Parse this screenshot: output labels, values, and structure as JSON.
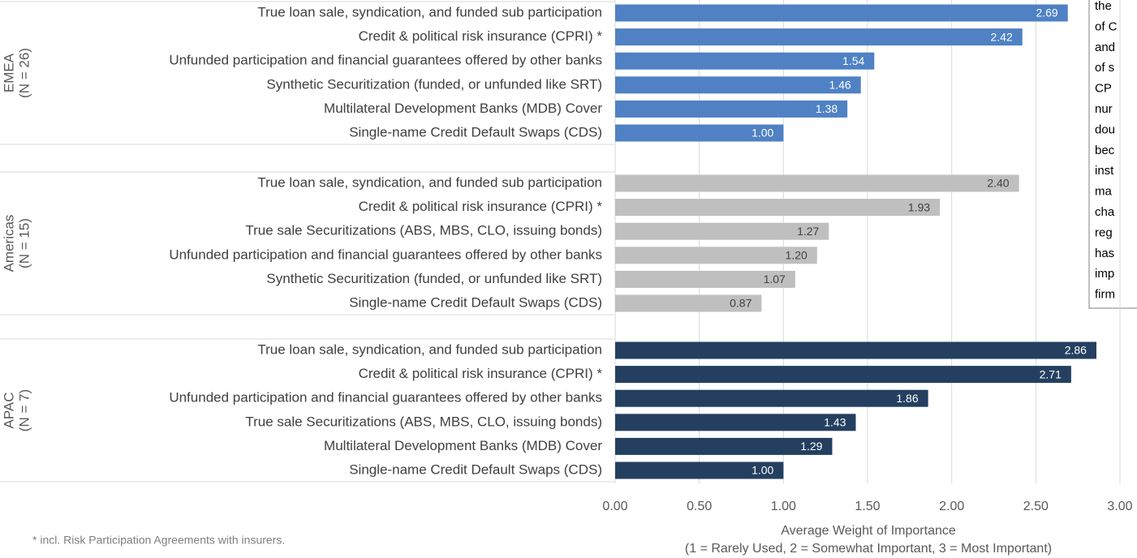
{
  "chart_data": {
    "type": "bar",
    "orientation": "horizontal",
    "groups": [
      {
        "name": "EMEA",
        "subtitle": "(N = 26)",
        "color": "#4f81c4",
        "label_color": "#ffffff",
        "categories": [
          "True loan sale, syndication, and funded sub participation",
          "Credit & political risk insurance (CPRI) *",
          "Unfunded participation and financial guarantees offered by other banks",
          "Synthetic Securitization (funded, or unfunded like SRT)",
          "Multilateral Development Banks (MDB) Cover",
          "Single-name Credit Default Swaps (CDS)"
        ],
        "values": [
          2.69,
          2.42,
          1.54,
          1.46,
          1.38,
          1.0
        ],
        "value_labels": [
          "2.69",
          "2.42",
          "1.54",
          "1.46",
          "1.38",
          "1.00"
        ]
      },
      {
        "name": "Americas",
        "subtitle": "(N = 15)",
        "color": "#bfbfbf",
        "label_color": "#404040",
        "categories": [
          "True loan sale, syndication, and funded sub participation",
          "Credit & political risk insurance (CPRI) *",
          "True sale Securitizations (ABS, MBS, CLO, issuing bonds)",
          "Unfunded participation and financial guarantees offered by other banks",
          "Synthetic Securitization (funded, or unfunded like SRT)",
          "Single-name Credit Default Swaps (CDS)"
        ],
        "values": [
          2.4,
          1.93,
          1.27,
          1.2,
          1.07,
          0.87
        ],
        "value_labels": [
          "2.40",
          "1.93",
          "1.27",
          "1.20",
          "1.07",
          "0.87"
        ]
      },
      {
        "name": "APAC",
        "subtitle": "(N = 7)",
        "color": "#243f60",
        "label_color": "#ffffff",
        "categories": [
          "True loan sale, syndication, and funded sub participation",
          "Credit & political risk insurance (CPRI) *",
          "Unfunded participation and financial guarantees offered by other banks",
          "True sale Securitizations (ABS, MBS, CLO, issuing bonds)",
          "Multilateral Development Banks (MDB) Cover",
          "Single-name Credit Default Swaps (CDS)"
        ],
        "values": [
          2.86,
          2.71,
          1.86,
          1.43,
          1.29,
          1.0
        ],
        "value_labels": [
          "2.86",
          "2.71",
          "1.86",
          "1.43",
          "1.29",
          "1.00"
        ]
      }
    ],
    "xlim": [
      0,
      3
    ],
    "xticks": [
      {
        "value": 0,
        "label": "0.00"
      },
      {
        "value": 0.5,
        "label": "0.50"
      },
      {
        "value": 1,
        "label": "1.00"
      },
      {
        "value": 1.5,
        "label": "1.50"
      },
      {
        "value": 2,
        "label": "2.00"
      },
      {
        "value": 2.5,
        "label": "2.50"
      },
      {
        "value": 3,
        "label": "3.00"
      }
    ],
    "grid": true,
    "xlabel": [
      "Average Weight of Importance",
      "(1 = Rarely Used, 2 = Somewhat Important, 3 = Most Important)"
    ],
    "footnote": "* incl. Risk Participation Agreements with insurers.",
    "annotation": [
      "the",
      "of C",
      "and",
      "of s",
      "CP",
      "nur",
      "dou",
      "bec",
      "inst",
      "ma",
      "cha",
      "reg",
      "has",
      "imp",
      "firm"
    ]
  }
}
